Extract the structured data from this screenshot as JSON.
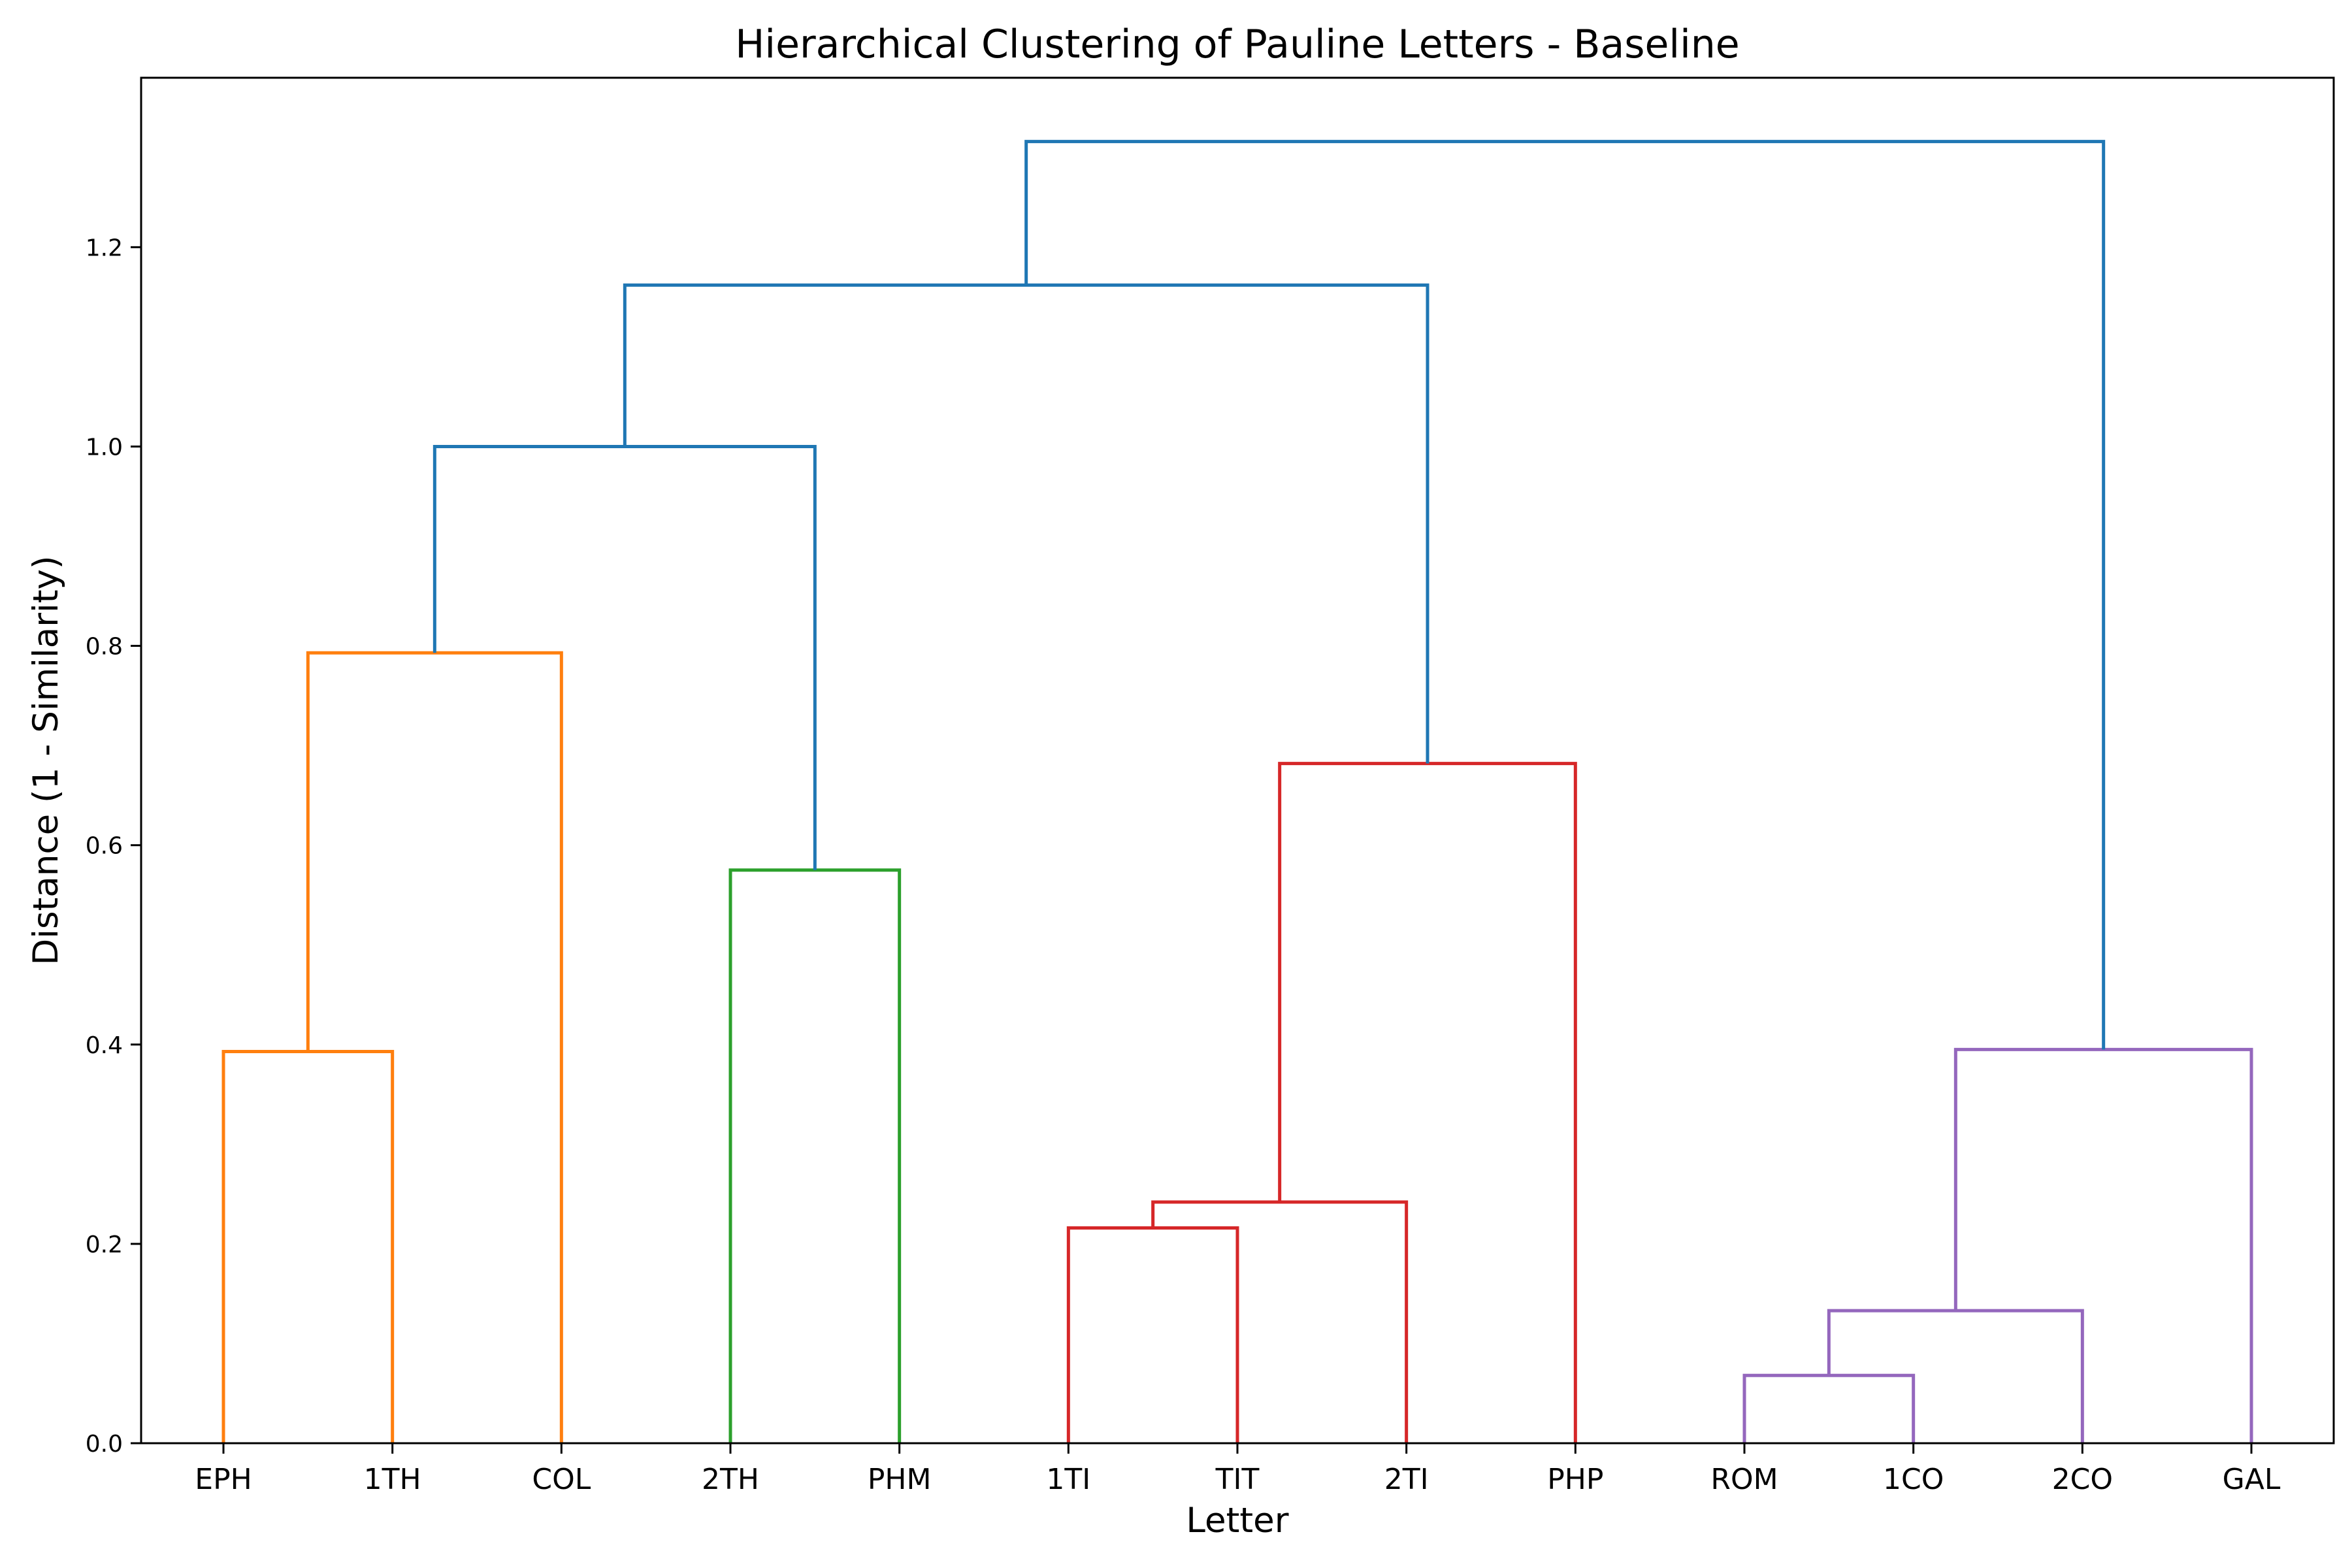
{
  "chart_data": {
    "type": "dendrogram",
    "title": "Hierarchical Clustering of Pauline Letters - Baseline",
    "xlabel": "Letter",
    "ylabel": "Distance (1 - Similarity)",
    "leaves": [
      "EPH",
      "1TH",
      "COL",
      "2TH",
      "PHM",
      "1TI",
      "TIT",
      "2TI",
      "PHP",
      "ROM",
      "1CO",
      "2CO",
      "GAL"
    ],
    "ylim": [
      0,
      1.37
    ],
    "yticks": [
      "0.0",
      "0.2",
      "0.4",
      "0.6",
      "0.8",
      "1.0",
      "1.2"
    ],
    "ytick_values": [
      0,
      0.2,
      0.4,
      0.6,
      0.8,
      1.0,
      1.2
    ],
    "colors": {
      "above_threshold": "#1f77b4",
      "cluster_1": "#ff7f0e",
      "cluster_2": "#2ca02c",
      "cluster_3": "#d62728",
      "cluster_4": "#9467bd"
    },
    "merges": [
      {
        "left": "EPH",
        "right": "1TH",
        "distance": 0.393,
        "color": "cluster_1"
      },
      {
        "left": "EPH+1TH",
        "right": "COL",
        "distance": 0.793,
        "color": "cluster_1"
      },
      {
        "left": "2TH",
        "right": "PHM",
        "distance": 0.575,
        "color": "cluster_2"
      },
      {
        "left": "EPH+1TH+COL",
        "right": "2TH+PHM",
        "distance": 1.0,
        "color": "above_threshold"
      },
      {
        "left": "1TI",
        "right": "TIT",
        "distance": 0.216,
        "color": "cluster_3"
      },
      {
        "left": "1TI+TIT",
        "right": "2TI",
        "distance": 0.242,
        "color": "cluster_3"
      },
      {
        "left": "1TI+TIT+2TI",
        "right": "PHP",
        "distance": 0.682,
        "color": "cluster_3"
      },
      {
        "left": "EPH+1TH+COL+2TH+PHM",
        "right": "1TI+TIT+2TI+PHP",
        "distance": 1.162,
        "color": "above_threshold"
      },
      {
        "left": "ROM",
        "right": "1CO",
        "distance": 0.068,
        "color": "cluster_4"
      },
      {
        "left": "ROM+1CO",
        "right": "2CO",
        "distance": 0.133,
        "color": "cluster_4"
      },
      {
        "left": "ROM+1CO+2CO",
        "right": "GAL",
        "distance": 0.395,
        "color": "cluster_4"
      },
      {
        "left": "EPH+1TH+COL+2TH+PHM+1TI+TIT+2TI+PHP",
        "right": "ROM+1CO+2CO+GAL",
        "distance": 1.306,
        "color": "above_threshold"
      }
    ]
  }
}
